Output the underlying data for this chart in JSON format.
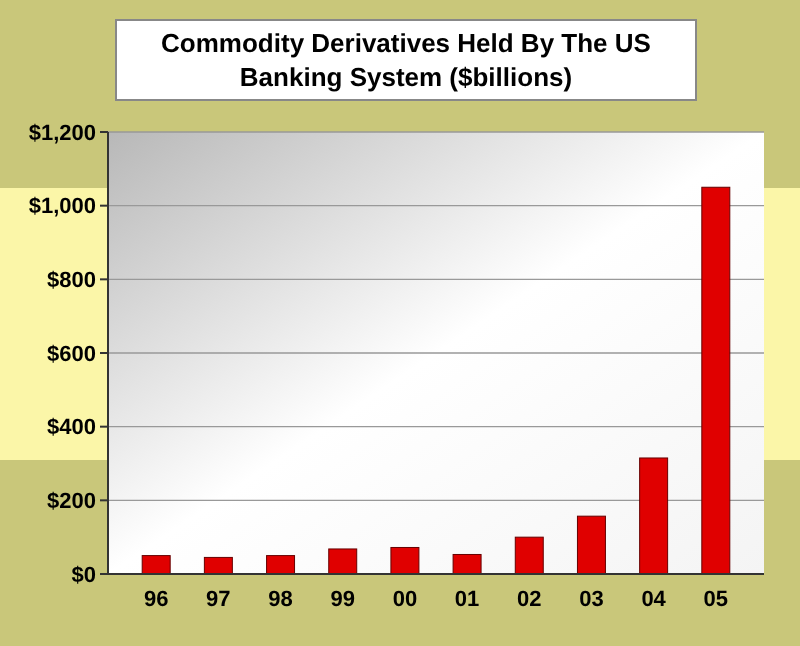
{
  "chart_data": {
    "type": "bar",
    "title": "Commodity Derivatives Held By The US Banking System ($billions)",
    "categories": [
      "96",
      "97",
      "98",
      "99",
      "00",
      "01",
      "02",
      "03",
      "04",
      "05"
    ],
    "values": [
      50,
      45,
      50,
      68,
      72,
      53,
      100,
      157,
      315,
      1050
    ],
    "color": "#e00000",
    "ylim": [
      0,
      1200
    ],
    "yticks": [
      {
        "value": 0,
        "label": "$0"
      },
      {
        "value": 200,
        "label": "$200"
      },
      {
        "value": 400,
        "label": "$400"
      },
      {
        "value": 600,
        "label": "$600"
      },
      {
        "value": 800,
        "label": "$800"
      },
      {
        "value": 1000,
        "label": "$1,000"
      },
      {
        "value": 1200,
        "label": "$1,200"
      }
    ],
    "grid": "y"
  }
}
